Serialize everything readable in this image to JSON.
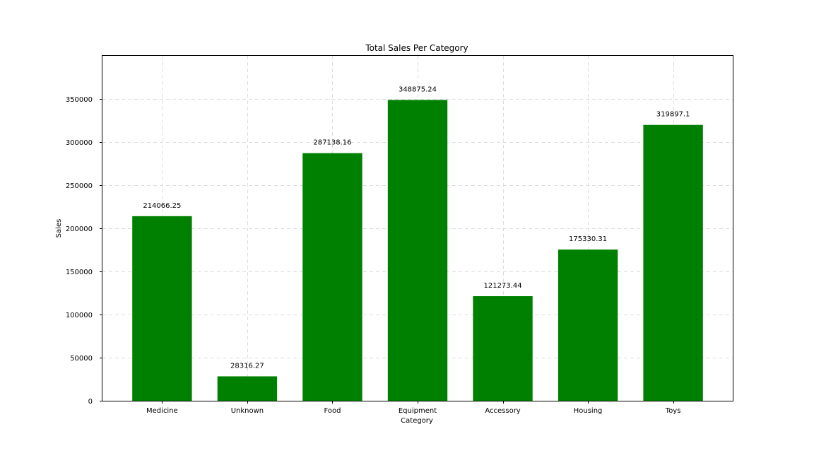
{
  "chart_data": {
    "type": "bar",
    "title": "Total Sales Per Category",
    "xlabel": "Category",
    "ylabel": "Sales",
    "categories": [
      "Medicine",
      "Unknown",
      "Food",
      "Equipment",
      "Accessory",
      "Housing",
      "Toys"
    ],
    "values": [
      214066.25,
      28316.27,
      287138.16,
      348875.24,
      121273.44,
      175330.31,
      319897.1
    ],
    "data_labels": [
      "214066.25",
      "28316.27",
      "287138.16",
      "348875.24",
      "121273.44",
      "175330.31",
      "319897.1"
    ],
    "ylim": [
      0,
      400000
    ],
    "yticks": [
      0,
      50000,
      100000,
      150000,
      200000,
      250000,
      300000,
      350000
    ],
    "grid": true,
    "colors": {
      "bar": "#008000"
    }
  }
}
